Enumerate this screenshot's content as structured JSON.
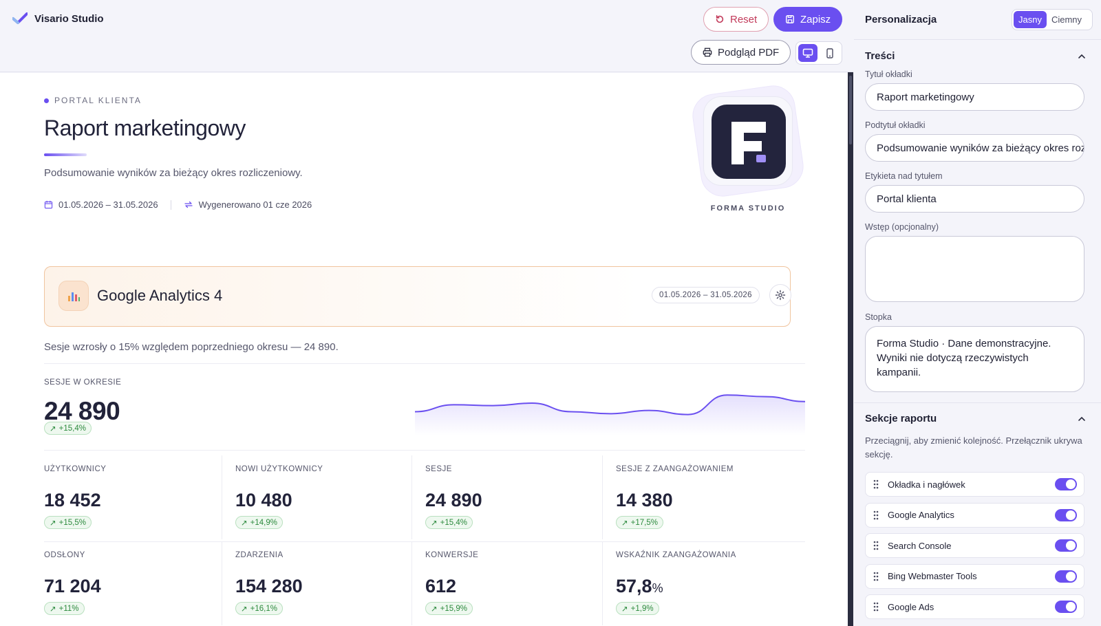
{
  "app": {
    "name": "Visario Studio"
  },
  "toolbar": {
    "reset_label": "Reset",
    "save_label": "Zapisz",
    "pdf_label": "Podgląd PDF"
  },
  "report": {
    "eyebrow": "PORTAL KLIENTA",
    "title": "Raport marketingowy",
    "subtitle": "Podsumowanie wyników za bieżący okres rozliczeniowy.",
    "date_range": "01.05.2026 – 31.05.2026",
    "generated": "Wygenerowano 01 cze 2026",
    "logo_caption": "FORMA STUDIO"
  },
  "ga": {
    "title": "Google Analytics 4",
    "date_range": "01.05.2026 – 31.05.2026",
    "summary": "Sesje wzrosły o 15% względem poprzedniego okresu — 24 890.",
    "headline": {
      "label": "SESJE W OKRESIE",
      "value": "24 890",
      "delta": "+15,4%"
    },
    "sparkline": [
      0.45,
      0.62,
      0.6,
      0.66,
      0.45,
      0.4,
      0.48,
      0.38,
      0.86,
      0.82,
      0.7
    ],
    "metrics": [
      {
        "label": "UŻYTKOWNICY",
        "value": "18 452",
        "unit": "",
        "delta": "+15,5%"
      },
      {
        "label": "NOWI UŻYTKOWNICY",
        "value": "10 480",
        "unit": "",
        "delta": "+14,9%"
      },
      {
        "label": "SESJE",
        "value": "24 890",
        "unit": "",
        "delta": "+15,4%"
      },
      {
        "label": "SESJE Z ZAANGAŻOWANIEM",
        "value": "14 380",
        "unit": "",
        "delta": "+17,5%"
      },
      {
        "label": "ODSŁONY",
        "value": "71 204",
        "unit": "",
        "delta": "+11%"
      },
      {
        "label": "ZDARZENIA",
        "value": "154 280",
        "unit": "",
        "delta": "+16,1%"
      },
      {
        "label": "KONWERSJE",
        "value": "612",
        "unit": "",
        "delta": "+15,9%"
      },
      {
        "label": "WSKAŹNIK ZAANGAŻOWANIA",
        "value": "57,8",
        "unit": "%",
        "delta": "+1,9%"
      }
    ]
  },
  "panel": {
    "title": "Personalizacja",
    "theme": {
      "light": "Jasny",
      "dark": "Ciemny",
      "selected": "Jasny"
    },
    "content": {
      "heading": "Treści",
      "cover_title_label": "Tytuł okładki",
      "cover_title_value": "Raport marketingowy",
      "cover_subtitle_label": "Podtytuł okładki",
      "cover_subtitle_value": "Podsumowanie wyników za bieżący okres rozliczeniowy.",
      "eyebrow_label": "Etykieta nad tytułem",
      "eyebrow_value": "Portal klienta",
      "intro_label": "Wstęp (opcjonalny)",
      "intro_value": "",
      "footer_label": "Stopka",
      "footer_value": "Forma Studio · Dane demonstracyjne. Wyniki nie dotyczą rzeczywistych kampanii."
    },
    "sections": {
      "heading": "Sekcje raportu",
      "hint": "Przeciągnij, aby zmienić kolejność. Przełącznik ukrywa sekcję.",
      "items": [
        {
          "label": "Okładka i nagłówek",
          "enabled": true
        },
        {
          "label": "Google Analytics",
          "enabled": true
        },
        {
          "label": "Search Console",
          "enabled": true
        },
        {
          "label": "Bing Webmaster Tools",
          "enabled": true
        },
        {
          "label": "Google Ads",
          "enabled": true
        }
      ]
    }
  },
  "colors": {
    "accent": "#6a4ff0",
    "danger": "#c23a5a",
    "success": "#2c8a3d",
    "ga_border": "#f0c49e",
    "dark_logo": "#23243d"
  }
}
